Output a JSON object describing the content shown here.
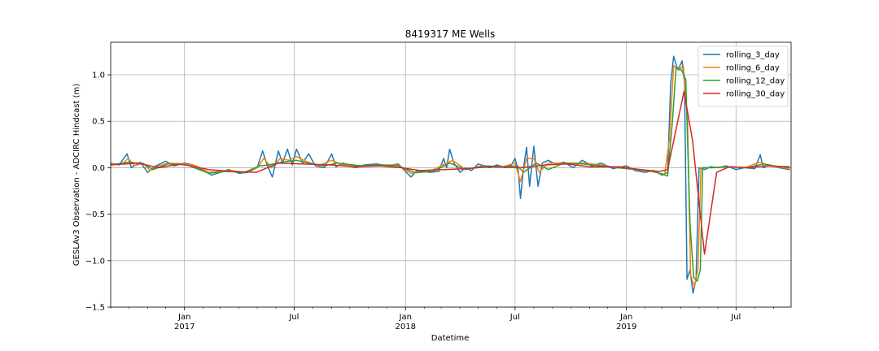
{
  "chart_data": {
    "type": "line",
    "title": "8419317 ME Wells",
    "xlabel": "Datetime",
    "ylabel": "GESLAv3 Observation - ADCIRC Hindcast (m)",
    "xlim": [
      "2016-09-01",
      "2019-09-30"
    ],
    "ylim": [
      -1.5,
      1.35
    ],
    "grid": true,
    "legend_position": "top-right",
    "x_ticks": [
      {
        "date": "2017-01-01",
        "label": "Jan",
        "sublabel": "2017"
      },
      {
        "date": "2017-07-01",
        "label": "Jul",
        "sublabel": ""
      },
      {
        "date": "2018-01-01",
        "label": "Jan",
        "sublabel": "2018"
      },
      {
        "date": "2018-07-01",
        "label": "Jul",
        "sublabel": ""
      },
      {
        "date": "2019-01-01",
        "label": "Jan",
        "sublabel": "2019"
      },
      {
        "date": "2019-07-01",
        "label": "Jul",
        "sublabel": ""
      }
    ],
    "y_ticks": [
      -1.5,
      -1.0,
      -0.5,
      0.0,
      0.5,
      1.0
    ],
    "y_tick_labels": [
      "−1.5",
      "−1.0",
      "−0.5",
      "0.0",
      "0.5",
      "1.0"
    ],
    "series": [
      {
        "name": "rolling_3_day",
        "color": "#1f77b4",
        "points": [
          [
            "2016-09-01",
            0.05
          ],
          [
            "2016-09-15",
            0.03
          ],
          [
            "2016-09-28",
            0.15
          ],
          [
            "2016-10-05",
            0.0
          ],
          [
            "2016-10-20",
            0.06
          ],
          [
            "2016-11-01",
            -0.05
          ],
          [
            "2016-11-15",
            0.02
          ],
          [
            "2016-12-01",
            0.07
          ],
          [
            "2016-12-15",
            0.02
          ],
          [
            "2017-01-01",
            0.05
          ],
          [
            "2017-01-15",
            0.03
          ],
          [
            "2017-02-01",
            -0.03
          ],
          [
            "2017-02-15",
            -0.08
          ],
          [
            "2017-03-01",
            -0.05
          ],
          [
            "2017-03-15",
            -0.02
          ],
          [
            "2017-04-01",
            -0.06
          ],
          [
            "2017-04-15",
            -0.05
          ],
          [
            "2017-05-01",
            0.0
          ],
          [
            "2017-05-10",
            0.18
          ],
          [
            "2017-05-18",
            0.02
          ],
          [
            "2017-05-26",
            -0.1
          ],
          [
            "2017-06-05",
            0.18
          ],
          [
            "2017-06-12",
            0.05
          ],
          [
            "2017-06-20",
            0.2
          ],
          [
            "2017-06-28",
            0.03
          ],
          [
            "2017-07-05",
            0.2
          ],
          [
            "2017-07-15",
            0.05
          ],
          [
            "2017-07-25",
            0.15
          ],
          [
            "2017-08-05",
            0.02
          ],
          [
            "2017-08-20",
            0.0
          ],
          [
            "2017-09-01",
            0.15
          ],
          [
            "2017-09-08",
            0.01
          ],
          [
            "2017-09-20",
            0.05
          ],
          [
            "2017-10-10",
            0.0
          ],
          [
            "2017-10-25",
            0.03
          ],
          [
            "2017-11-15",
            0.04
          ],
          [
            "2017-12-01",
            0.02
          ],
          [
            "2017-12-20",
            0.04
          ],
          [
            "2018-01-01",
            -0.04
          ],
          [
            "2018-01-10",
            -0.1
          ],
          [
            "2018-01-20",
            -0.03
          ],
          [
            "2018-02-10",
            -0.05
          ],
          [
            "2018-02-25",
            -0.04
          ],
          [
            "2018-03-05",
            0.1
          ],
          [
            "2018-03-10",
            0.0
          ],
          [
            "2018-03-15",
            0.2
          ],
          [
            "2018-03-22",
            0.05
          ],
          [
            "2018-04-01",
            -0.05
          ],
          [
            "2018-04-10",
            0.0
          ],
          [
            "2018-04-20",
            -0.03
          ],
          [
            "2018-05-01",
            0.04
          ],
          [
            "2018-05-20",
            0.0
          ],
          [
            "2018-06-01",
            0.03
          ],
          [
            "2018-06-15",
            0.0
          ],
          [
            "2018-06-25",
            0.03
          ],
          [
            "2018-07-01",
            0.1
          ],
          [
            "2018-07-06",
            -0.02
          ],
          [
            "2018-07-10",
            -0.33
          ],
          [
            "2018-07-15",
            0.0
          ],
          [
            "2018-07-20",
            0.22
          ],
          [
            "2018-07-25",
            -0.2
          ],
          [
            "2018-08-01",
            0.23
          ],
          [
            "2018-08-08",
            -0.2
          ],
          [
            "2018-08-15",
            0.05
          ],
          [
            "2018-08-25",
            0.08
          ],
          [
            "2018-09-05",
            0.04
          ],
          [
            "2018-09-20",
            0.06
          ],
          [
            "2018-10-05",
            0.0
          ],
          [
            "2018-10-20",
            0.08
          ],
          [
            "2018-11-05",
            0.02
          ],
          [
            "2018-11-20",
            0.05
          ],
          [
            "2018-12-10",
            -0.01
          ],
          [
            "2019-01-01",
            0.02
          ],
          [
            "2019-01-15",
            -0.03
          ],
          [
            "2019-02-01",
            -0.05
          ],
          [
            "2019-02-15",
            -0.03
          ],
          [
            "2019-03-01",
            -0.08
          ],
          [
            "2019-03-10",
            -0.05
          ],
          [
            "2019-03-15",
            0.9
          ],
          [
            "2019-03-20",
            1.2
          ],
          [
            "2019-03-27",
            1.05
          ],
          [
            "2019-04-03",
            1.15
          ],
          [
            "2019-04-07",
            0.9
          ],
          [
            "2019-04-11",
            -1.2
          ],
          [
            "2019-04-16",
            -1.1
          ],
          [
            "2019-04-21",
            -1.35
          ],
          [
            "2019-04-26",
            -1.2
          ],
          [
            "2019-05-01",
            0.0
          ],
          [
            "2019-05-10",
            -0.02
          ],
          [
            "2019-05-20",
            0.01
          ],
          [
            "2019-06-01",
            0.0
          ],
          [
            "2019-06-15",
            0.02
          ],
          [
            "2019-07-01",
            -0.02
          ],
          [
            "2019-07-15",
            0.0
          ],
          [
            "2019-08-01",
            -0.01
          ],
          [
            "2019-08-10",
            0.14
          ],
          [
            "2019-08-15",
            0.0
          ],
          [
            "2019-08-25",
            0.03
          ],
          [
            "2019-09-10",
            0.0
          ],
          [
            "2019-09-28",
            -0.02
          ]
        ]
      },
      {
        "name": "rolling_6_day",
        "color": "#ff7f0e",
        "points": [
          [
            "2016-09-01",
            0.04
          ],
          [
            "2016-09-20",
            0.04
          ],
          [
            "2016-09-30",
            0.1
          ],
          [
            "2016-10-10",
            0.02
          ],
          [
            "2016-10-25",
            0.05
          ],
          [
            "2016-11-05",
            -0.03
          ],
          [
            "2016-11-20",
            0.02
          ],
          [
            "2016-12-05",
            0.05
          ],
          [
            "2017-01-01",
            0.04
          ],
          [
            "2017-01-20",
            0.02
          ],
          [
            "2017-02-10",
            -0.05
          ],
          [
            "2017-03-01",
            -0.04
          ],
          [
            "2017-03-20",
            -0.03
          ],
          [
            "2017-04-10",
            -0.05
          ],
          [
            "2017-05-01",
            0.0
          ],
          [
            "2017-05-12",
            0.1
          ],
          [
            "2017-05-25",
            0.0
          ],
          [
            "2017-06-08",
            0.1
          ],
          [
            "2017-06-22",
            0.08
          ],
          [
            "2017-07-05",
            0.12
          ],
          [
            "2017-07-20",
            0.07
          ],
          [
            "2017-08-10",
            0.02
          ],
          [
            "2017-09-01",
            0.08
          ],
          [
            "2017-09-20",
            0.03
          ],
          [
            "2017-10-20",
            0.02
          ],
          [
            "2017-11-20",
            0.03
          ],
          [
            "2017-12-20",
            0.03
          ],
          [
            "2018-01-10",
            -0.06
          ],
          [
            "2018-02-10",
            -0.04
          ],
          [
            "2018-03-10",
            0.05
          ],
          [
            "2018-03-20",
            0.08
          ],
          [
            "2018-04-10",
            -0.02
          ],
          [
            "2018-05-10",
            0.02
          ],
          [
            "2018-06-10",
            0.01
          ],
          [
            "2018-07-01",
            0.05
          ],
          [
            "2018-07-10",
            -0.15
          ],
          [
            "2018-07-20",
            0.1
          ],
          [
            "2018-08-01",
            0.1
          ],
          [
            "2018-08-10",
            -0.05
          ],
          [
            "2018-08-25",
            0.05
          ],
          [
            "2018-09-20",
            0.05
          ],
          [
            "2018-10-20",
            0.05
          ],
          [
            "2018-11-20",
            0.03
          ],
          [
            "2018-12-15",
            0.0
          ],
          [
            "2019-01-15",
            -0.02
          ],
          [
            "2019-02-10",
            -0.04
          ],
          [
            "2019-03-05",
            -0.07
          ],
          [
            "2019-03-13",
            0.3
          ],
          [
            "2019-03-20",
            1.1
          ],
          [
            "2019-03-28",
            1.05
          ],
          [
            "2019-04-05",
            1.1
          ],
          [
            "2019-04-12",
            0.5
          ],
          [
            "2019-04-17",
            -1.15
          ],
          [
            "2019-04-23",
            -1.28
          ],
          [
            "2019-04-29",
            -1.1
          ],
          [
            "2019-05-04",
            0.0
          ],
          [
            "2019-05-20",
            0.0
          ],
          [
            "2019-06-15",
            0.01
          ],
          [
            "2019-07-15",
            0.0
          ],
          [
            "2019-08-10",
            0.06
          ],
          [
            "2019-08-25",
            0.02
          ],
          [
            "2019-09-28",
            -0.01
          ]
        ]
      },
      {
        "name": "rolling_12_day",
        "color": "#2ca02c",
        "points": [
          [
            "2016-09-01",
            0.03
          ],
          [
            "2016-10-01",
            0.06
          ],
          [
            "2016-10-25",
            0.04
          ],
          [
            "2016-11-10",
            -0.02
          ],
          [
            "2016-12-05",
            0.04
          ],
          [
            "2017-01-05",
            0.03
          ],
          [
            "2017-02-10",
            -0.06
          ],
          [
            "2017-03-10",
            -0.04
          ],
          [
            "2017-04-10",
            -0.05
          ],
          [
            "2017-05-05",
            0.02
          ],
          [
            "2017-05-20",
            0.03
          ],
          [
            "2017-06-10",
            0.06
          ],
          [
            "2017-07-05",
            0.08
          ],
          [
            "2017-07-25",
            0.05
          ],
          [
            "2017-08-20",
            0.02
          ],
          [
            "2017-09-10",
            0.05
          ],
          [
            "2017-10-20",
            0.02
          ],
          [
            "2017-11-20",
            0.03
          ],
          [
            "2017-12-20",
            0.02
          ],
          [
            "2018-01-15",
            -0.05
          ],
          [
            "2018-02-15",
            -0.04
          ],
          [
            "2018-03-15",
            0.05
          ],
          [
            "2018-04-10",
            -0.02
          ],
          [
            "2018-05-10",
            0.02
          ],
          [
            "2018-06-10",
            0.01
          ],
          [
            "2018-07-05",
            0.02
          ],
          [
            "2018-07-15",
            -0.05
          ],
          [
            "2018-08-05",
            0.05
          ],
          [
            "2018-08-25",
            -0.02
          ],
          [
            "2018-09-20",
            0.05
          ],
          [
            "2018-10-20",
            0.04
          ],
          [
            "2018-11-20",
            0.02
          ],
          [
            "2018-12-20",
            0.0
          ],
          [
            "2019-01-20",
            -0.02
          ],
          [
            "2019-02-15",
            -0.04
          ],
          [
            "2019-03-10",
            -0.09
          ],
          [
            "2019-03-18",
            0.5
          ],
          [
            "2019-03-24",
            1.08
          ],
          [
            "2019-04-02",
            1.05
          ],
          [
            "2019-04-09",
            0.95
          ],
          [
            "2019-04-16",
            -0.6
          ],
          [
            "2019-04-22",
            -1.18
          ],
          [
            "2019-04-28",
            -1.22
          ],
          [
            "2019-05-03",
            -1.1
          ],
          [
            "2019-05-07",
            0.0
          ],
          [
            "2019-05-25",
            0.0
          ],
          [
            "2019-06-20",
            0.01
          ],
          [
            "2019-07-20",
            0.0
          ],
          [
            "2019-08-15",
            0.04
          ],
          [
            "2019-09-10",
            0.01
          ],
          [
            "2019-09-28",
            0.0
          ]
        ]
      },
      {
        "name": "rolling_30_day",
        "color": "#d62728",
        "points": [
          [
            "2016-09-01",
            0.03
          ],
          [
            "2016-10-15",
            0.05
          ],
          [
            "2016-11-20",
            0.0
          ],
          [
            "2016-12-25",
            0.04
          ],
          [
            "2017-02-10",
            -0.02
          ],
          [
            "2017-03-20",
            -0.04
          ],
          [
            "2017-04-30",
            -0.05
          ],
          [
            "2017-06-05",
            0.05
          ],
          [
            "2017-07-15",
            0.04
          ],
          [
            "2017-08-30",
            0.03
          ],
          [
            "2017-10-10",
            0.01
          ],
          [
            "2017-11-20",
            0.02
          ],
          [
            "2017-12-25",
            0.0
          ],
          [
            "2018-01-25",
            -0.03
          ],
          [
            "2018-03-05",
            -0.02
          ],
          [
            "2018-04-10",
            -0.01
          ],
          [
            "2018-05-20",
            0.01
          ],
          [
            "2018-07-10",
            0.0
          ],
          [
            "2018-08-20",
            0.03
          ],
          [
            "2018-09-25",
            0.04
          ],
          [
            "2018-11-01",
            0.01
          ],
          [
            "2018-12-20",
            0.01
          ],
          [
            "2019-01-25",
            -0.02
          ],
          [
            "2019-02-25",
            -0.04
          ],
          [
            "2019-03-10",
            -0.02
          ],
          [
            "2019-04-06",
            0.82
          ],
          [
            "2019-04-20",
            0.3
          ],
          [
            "2019-05-10",
            -0.93
          ],
          [
            "2019-05-30",
            -0.05
          ],
          [
            "2019-06-20",
            0.01
          ],
          [
            "2019-07-20",
            0.0
          ],
          [
            "2019-08-20",
            0.02
          ],
          [
            "2019-09-28",
            0.01
          ]
        ]
      }
    ]
  }
}
